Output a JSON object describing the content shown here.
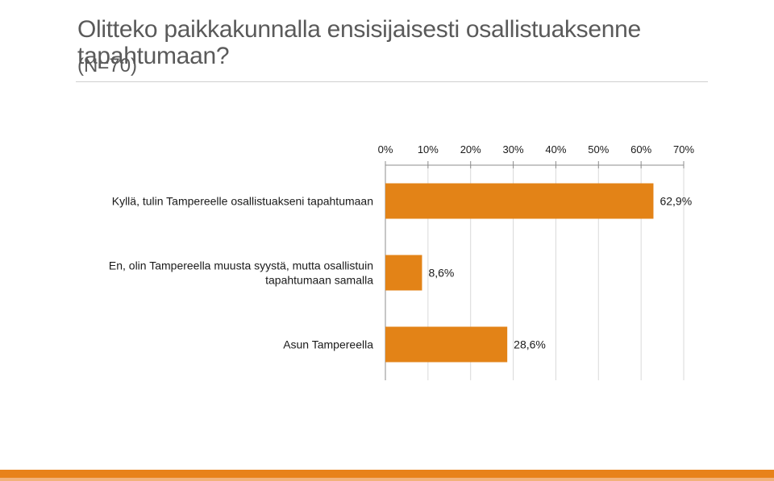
{
  "slide": {
    "title": "Olitteko paikkakunnalla ensisijaisesti osallistuaksenne tapahtumaan?",
    "subtitle": "(N=70)"
  },
  "colors": {
    "bar": "#e38317",
    "footer": "#e8821a",
    "grid": "#d9d9d9",
    "text": "#1a1a1a"
  },
  "chart_data": {
    "type": "bar",
    "orientation": "horizontal",
    "categories": [
      [
        "Kyllä, tulin Tampereelle osallistuakseni tapahtumaan"
      ],
      [
        "En, olin Tampereella muusta syystä, mutta osallistuin",
        "tapahtumaan samalla"
      ],
      [
        "Asun Tampereella"
      ]
    ],
    "values": [
      62.9,
      8.6,
      28.6
    ],
    "data_labels": [
      "62,9%",
      "8,6%",
      "28,6%"
    ],
    "xlim": [
      0,
      70
    ],
    "xticks": [
      0,
      10,
      20,
      30,
      40,
      50,
      60,
      70
    ],
    "xtick_labels": [
      "0%",
      "10%",
      "20%",
      "30%",
      "40%",
      "50%",
      "60%",
      "70%"
    ],
    "axis_position": "top",
    "grid": true
  }
}
